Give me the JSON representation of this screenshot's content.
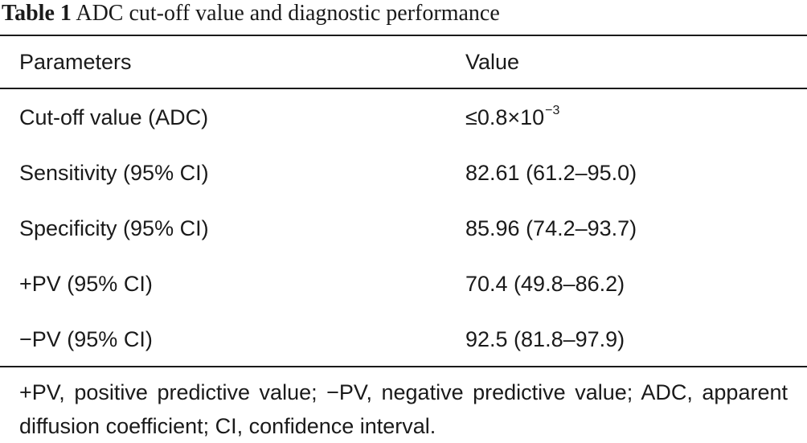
{
  "caption": {
    "label": "Table 1",
    "text": " ADC cut-off value and diagnostic performance"
  },
  "table": {
    "headers": {
      "parameters": "Parameters",
      "value": "Value"
    },
    "rows": [
      {
        "parameter": "Cut-off value (ADC)",
        "value": "≤0.8×10",
        "value_exponent": "−3"
      },
      {
        "parameter": "Sensitivity (95% CI)",
        "value": "82.61 (61.2–95.0)"
      },
      {
        "parameter": "Specificity (95% CI)",
        "value": "85.96 (74.2–93.7)"
      },
      {
        "parameter": "+PV (95% CI)",
        "value": "70.4 (49.8–86.2)"
      },
      {
        "parameter": "−PV (95% CI)",
        "value": "92.5 (81.8–97.9)"
      }
    ]
  },
  "footnote": "+PV, positive predictive value; −PV, negative predictive value; ADC, apparent diffusion coefficient; CI, confidence interval."
}
